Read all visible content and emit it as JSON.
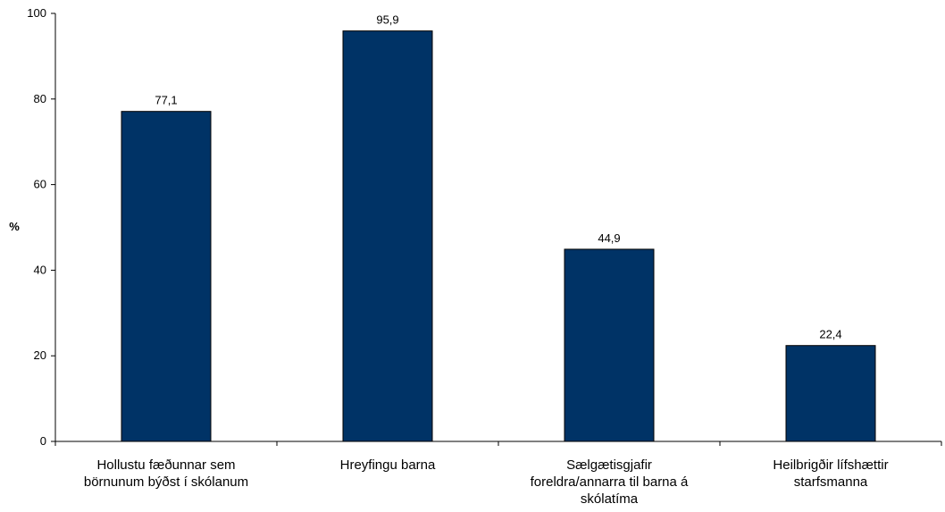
{
  "chart_data": {
    "type": "bar",
    "ylabel": "%",
    "ylim": [
      0,
      100
    ],
    "y_ticks": [
      "0",
      "20",
      "40",
      "60",
      "80",
      "100"
    ],
    "categories": [
      [
        "Hollustu fæðunnar sem",
        "börnunum býðst í skólanum"
      ],
      [
        "Hreyfingu barna"
      ],
      [
        "Sælgætisgjafir",
        "foreldra/annarra til barna á",
        "skólatíma"
      ],
      [
        "Heilbrigðir lífshættir",
        "starfsmanna"
      ]
    ],
    "values": [
      77.1,
      95.9,
      44.9,
      22.4
    ],
    "data_labels": [
      "77,1",
      "95,9",
      "44,9",
      "22,4"
    ],
    "bar_color": "#003366",
    "grid": false,
    "legend": "none"
  }
}
